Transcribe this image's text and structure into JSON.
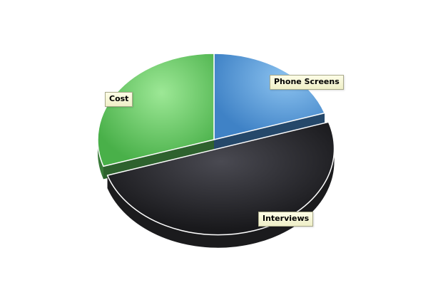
{
  "chart_data": {
    "type": "pie",
    "style": "3d-exploded",
    "legend": "none",
    "slices": [
      {
        "label": "Phone Screens",
        "value": 20,
        "color": "#4a8fd4"
      },
      {
        "label": "Interviews",
        "value": 50,
        "color": "#2b2b2f"
      },
      {
        "label": "Cost",
        "value": 30,
        "color": "#5cc45c"
      }
    ]
  }
}
